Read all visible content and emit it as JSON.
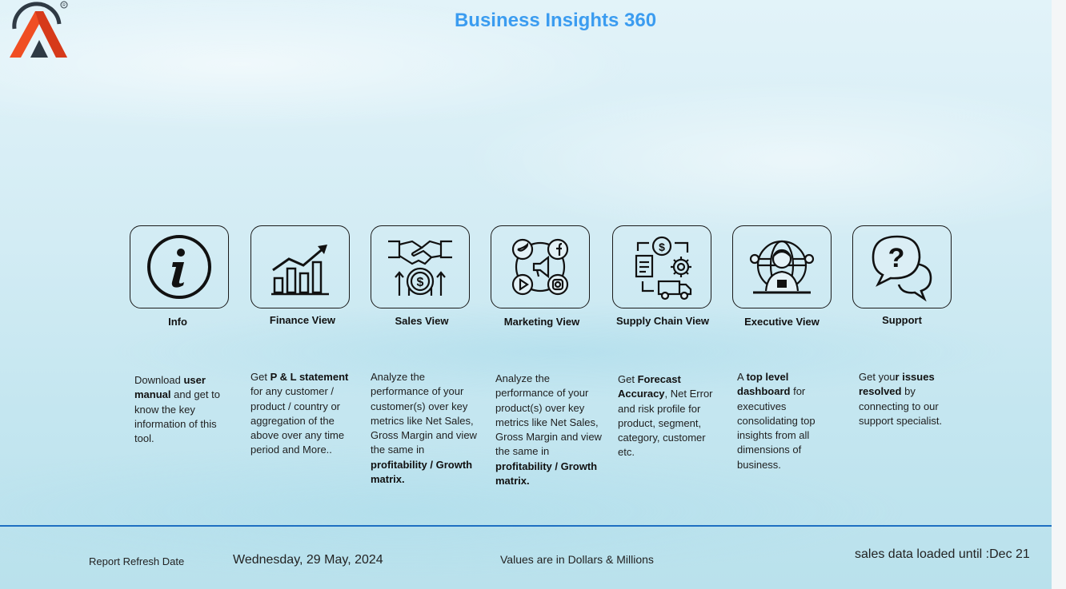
{
  "header": {
    "title": "Business Insights 360"
  },
  "colors": {
    "title": "#3b9cf0",
    "divider": "#1e6fc2",
    "logo_dark": "#2f3a44",
    "logo_accent": "#f04e23"
  },
  "cards": [
    {
      "id": "info",
      "icon": "info-icon",
      "label": "Info",
      "desc": [
        {
          "t": "Download ",
          "b": false
        },
        {
          "t": "user manual",
          "b": true
        },
        {
          "t": " and get to know the key information of this tool.",
          "b": false
        }
      ]
    },
    {
      "id": "finance",
      "icon": "bar-chart-growth-icon",
      "label": "Finance View",
      "desc": [
        {
          "t": "Get  ",
          "b": false
        },
        {
          "t": "P & L statement",
          "b": true
        },
        {
          "t": " for any customer /   product / country or aggregation of the above over any time period and More..",
          "b": false
        }
      ]
    },
    {
      "id": "sales",
      "icon": "handshake-dollar-icon",
      "label": "Sales View",
      "desc": [
        {
          "t": "Analyze the performance of your customer(s) over key metrics like Net Sales, Gross Margin and view the same in ",
          "b": false
        },
        {
          "t": "profitability / Growth matrix.",
          "b": true
        }
      ]
    },
    {
      "id": "marketing",
      "icon": "social-media-icon",
      "label": "Marketing View",
      "desc": [
        {
          "t": "Analyze the performance of your product(s) over key metrics like Net Sales, Gross Margin and view the same in ",
          "b": false
        },
        {
          "t": "profitability / Growth matrix.",
          "b": true
        }
      ]
    },
    {
      "id": "supply",
      "icon": "supply-chain-icon",
      "label": "Supply Chain View",
      "desc": [
        {
          "t": "Get ",
          "b": false
        },
        {
          "t": "Forecast Accuracy",
          "b": true
        },
        {
          "t": ", Net Error and risk profile for product, segment, category, customer etc.",
          "b": false
        }
      ]
    },
    {
      "id": "executive",
      "icon": "executive-globe-icon",
      "label": "Executive View",
      "desc": [
        {
          "t": "A ",
          "b": false
        },
        {
          "t": "top level dashboard",
          "b": true
        },
        {
          "t": " for executives consolidating top insights from all dimensions of business.",
          "b": false
        }
      ]
    },
    {
      "id": "support",
      "icon": "support-chat-icon",
      "label": "Support",
      "desc": [
        {
          "t": "Get you",
          "b": false
        },
        {
          "t": "r issues resolved",
          "b": true
        },
        {
          "t": " by connecting to our support specialist.",
          "b": false
        }
      ]
    }
  ],
  "footer": {
    "refresh_label": "Report Refresh Date",
    "refresh_date": "Wednesday, 29 May, 2024",
    "units_note": "Values are in Dollars & Millions",
    "loaded_until": "sales data loaded until :Dec 21"
  }
}
